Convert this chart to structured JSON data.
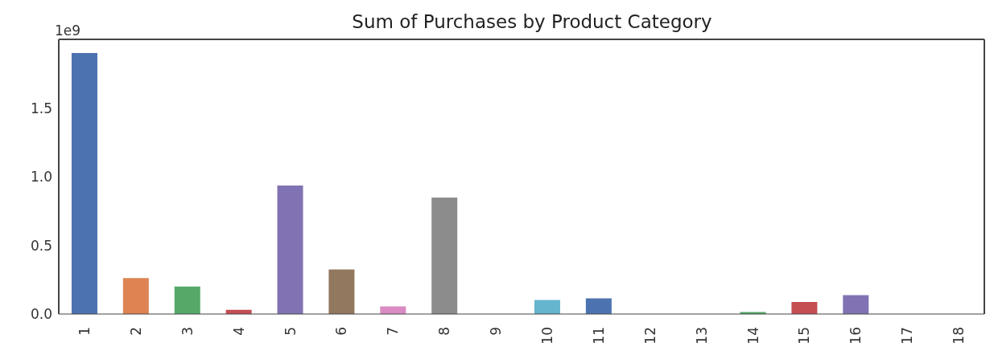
{
  "chart_data": {
    "type": "bar",
    "title": "Sum of Purchases by Product Category",
    "categories": [
      "1",
      "2",
      "3",
      "4",
      "5",
      "6",
      "7",
      "8",
      "9",
      "10",
      "11",
      "12",
      "13",
      "14",
      "15",
      "16",
      "17",
      "18"
    ],
    "values": [
      1.9,
      0.262,
      0.2,
      0.03,
      0.936,
      0.324,
      0.056,
      0.848,
      0,
      0.102,
      0.114,
      0,
      0,
      0.014,
      0.088,
      0.138,
      0,
      0
    ],
    "colors": [
      "#4c72b0",
      "#dd8452",
      "#55a868",
      "#c44e52",
      "#8172b3",
      "#937860",
      "#da8bc3",
      "#8c8c8c",
      "#ccb974",
      "#64b5cd",
      "#4c72b0",
      "#dd8452",
      "#55a868",
      "#55a868",
      "#c44e52",
      "#8172b3",
      "#937860",
      "#da8bc3"
    ],
    "ylim": [
      0,
      2.0
    ],
    "yticks": [
      {
        "value": 0,
        "label": "0.0"
      },
      {
        "value": 0.5,
        "label": "0.5"
      },
      {
        "value": 1,
        "label": "1.0"
      },
      {
        "value": 1.5,
        "label": "1.5"
      }
    ],
    "annotations": [
      "1e9"
    ],
    "grid": false
  }
}
